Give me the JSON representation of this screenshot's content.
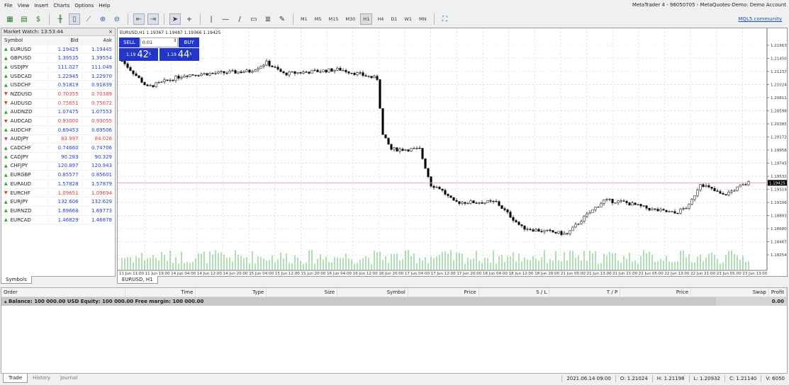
{
  "window": {
    "title": "MetaTrader 4 - 96050705 - MetaQuotes-Demo: Demo Account"
  },
  "menu": [
    "File",
    "View",
    "Insert",
    "Charts",
    "Options",
    "Help"
  ],
  "timeframes": [
    "M1",
    "M5",
    "M15",
    "M30",
    "H1",
    "H4",
    "D1",
    "W1",
    "MN"
  ],
  "active_timeframe": "H1",
  "mql_link": "MQL5.community",
  "market_watch": {
    "title": "Market Watch: 13:53:44",
    "columns": [
      "Symbol",
      "Bid",
      "Ask"
    ],
    "rows": [
      {
        "symbol": "EURUSD",
        "bid": "1.19425",
        "ask": "1.19445",
        "dir": "up"
      },
      {
        "symbol": "GBPUSD",
        "bid": "1.39535",
        "ask": "1.39554",
        "dir": "up"
      },
      {
        "symbol": "USDJPY",
        "bid": "111.027",
        "ask": "111.049",
        "dir": "up"
      },
      {
        "symbol": "USDCAD",
        "bid": "1.22945",
        "ask": "1.22970",
        "dir": "up"
      },
      {
        "symbol": "USDCHF",
        "bid": "0.91819",
        "ask": "0.91839",
        "dir": "up"
      },
      {
        "symbol": "NZDUSD",
        "bid": "0.70355",
        "ask": "0.70389",
        "dir": "down"
      },
      {
        "symbol": "AUDUSD",
        "bid": "0.75651",
        "ask": "0.75672",
        "dir": "down"
      },
      {
        "symbol": "AUDNZD",
        "bid": "1.07475",
        "ask": "1.07553",
        "dir": "up"
      },
      {
        "symbol": "AUDCAD",
        "bid": "0.93000",
        "ask": "0.93055",
        "dir": "down"
      },
      {
        "symbol": "AUDCHF",
        "bid": "0.69453",
        "ask": "0.69506",
        "dir": "up"
      },
      {
        "symbol": "AUDJPY",
        "bid": "83.997",
        "ask": "84.028",
        "dir": "down"
      },
      {
        "symbol": "CADCHF",
        "bid": "0.74660",
        "ask": "0.74706",
        "dir": "up"
      },
      {
        "symbol": "CADJPY",
        "bid": "90.283",
        "ask": "90.329",
        "dir": "up"
      },
      {
        "symbol": "CHFJPY",
        "bid": "120.897",
        "ask": "120.943",
        "dir": "up"
      },
      {
        "symbol": "EURGBP",
        "bid": "0.85577",
        "ask": "0.85601",
        "dir": "up"
      },
      {
        "symbol": "EURAUD",
        "bid": "1.57828",
        "ask": "1.57879",
        "dir": "up"
      },
      {
        "symbol": "EURCHF",
        "bid": "1.09651",
        "ask": "1.09694",
        "dir": "down"
      },
      {
        "symbol": "EURJPY",
        "bid": "132.606",
        "ask": "132.629",
        "dir": "up"
      },
      {
        "symbol": "EURNZD",
        "bid": "1.69668",
        "ask": "1.69773",
        "dir": "up"
      },
      {
        "symbol": "EURCAD",
        "bid": "1.46829",
        "ask": "1.46878",
        "dir": "up"
      }
    ],
    "tab": "Symbols"
  },
  "chart": {
    "header": "EURUSD,H1  1.19367 1.19487 1.19366 1.19425",
    "tab": "EURUSD, H1",
    "one_click": {
      "sell": "SELL",
      "buy": "BUY",
      "lot": "0.01",
      "sell_big": "1.19",
      "sell_pips": "42",
      "sell_frac": "5",
      "buy_big": "1.19",
      "buy_pips": "44",
      "buy_frac": "5"
    },
    "price_labels": [
      "1.21663",
      "1.21450",
      "1.21237",
      "1.21024",
      "1.20811",
      "1.20598",
      "1.20385",
      "1.20172",
      "1.19958",
      "1.19745",
      "1.19532",
      "1.19319",
      "1.19106",
      "1.18893",
      "1.18680",
      "1.18467",
      "1.18254"
    ],
    "current_price": "1.19425",
    "time_labels": [
      "11 Jun 11:00",
      "11 Jun 19:00",
      "14 Jun 04:00",
      "14 Jun 12:00",
      "14 Jun 20:00",
      "15 Jun 04:00",
      "15 Jun 12:00",
      "15 Jun 20:00",
      "16 Jun 04:00",
      "16 Jun 12:00",
      "16 Jun 20:00",
      "17 Jun 04:00",
      "17 Jun 12:00",
      "17 Jun 20:00",
      "18 Jun 04:00",
      "18 Jun 12:00",
      "18 Jun 20:00",
      "21 Jun 05:00",
      "21 Jun 13:00",
      "21 Jun 21:00",
      "22 Jun 05:00",
      "22 Jun 13:00",
      "22 Jun 21:00",
      "23 Jun 05:00",
      "23 Jun 13:00"
    ],
    "price_path": [
      [
        0,
        1.2141
      ],
      [
        9,
        1.2098
      ],
      [
        22,
        1.2118
      ],
      [
        45,
        1.2124
      ],
      [
        51,
        1.2138
      ],
      [
        57,
        1.212
      ],
      [
        77,
        1.2127
      ],
      [
        90,
        1.2112
      ],
      [
        92,
        1.202
      ],
      [
        95,
        1.1997
      ],
      [
        105,
        1.1997
      ],
      [
        109,
        1.1939
      ],
      [
        112,
        1.1934
      ],
      [
        117,
        1.1911
      ],
      [
        132,
        1.1911
      ],
      [
        141,
        1.187
      ],
      [
        147,
        1.1865
      ],
      [
        157,
        1.1859
      ],
      [
        162,
        1.1882
      ],
      [
        170,
        1.1914
      ],
      [
        177,
        1.1911
      ],
      [
        187,
        1.1899
      ],
      [
        195,
        1.1893
      ],
      [
        200,
        1.1905
      ],
      [
        204,
        1.1942
      ],
      [
        207,
        1.1934
      ],
      [
        212,
        1.1922
      ],
      [
        217,
        1.1934
      ],
      [
        221,
        1.19425
      ]
    ],
    "colors": {
      "bid_line": "#f0a8a0",
      "volume": "#3cb043",
      "candle": "#000000"
    }
  },
  "terminal": {
    "columns": [
      "Order",
      "Time",
      "Type",
      "Size",
      "Symbol",
      "Price",
      "S / L",
      "T / P",
      "Price",
      "Swap",
      "Profit"
    ],
    "balance": "Balance: 100 000.00 USD  Equity: 100 000.00  Free margin: 100 000.00",
    "profit": "0.00",
    "tabs": [
      "Trade",
      "History",
      "Journal"
    ]
  },
  "status": {
    "datetime": "2021.06.14 09:00",
    "open": "O: 1.21024",
    "high": "H: 1.21198",
    "low": "L: 1.20932",
    "close": "C: 1.21140",
    "volume": "V: 6050"
  }
}
